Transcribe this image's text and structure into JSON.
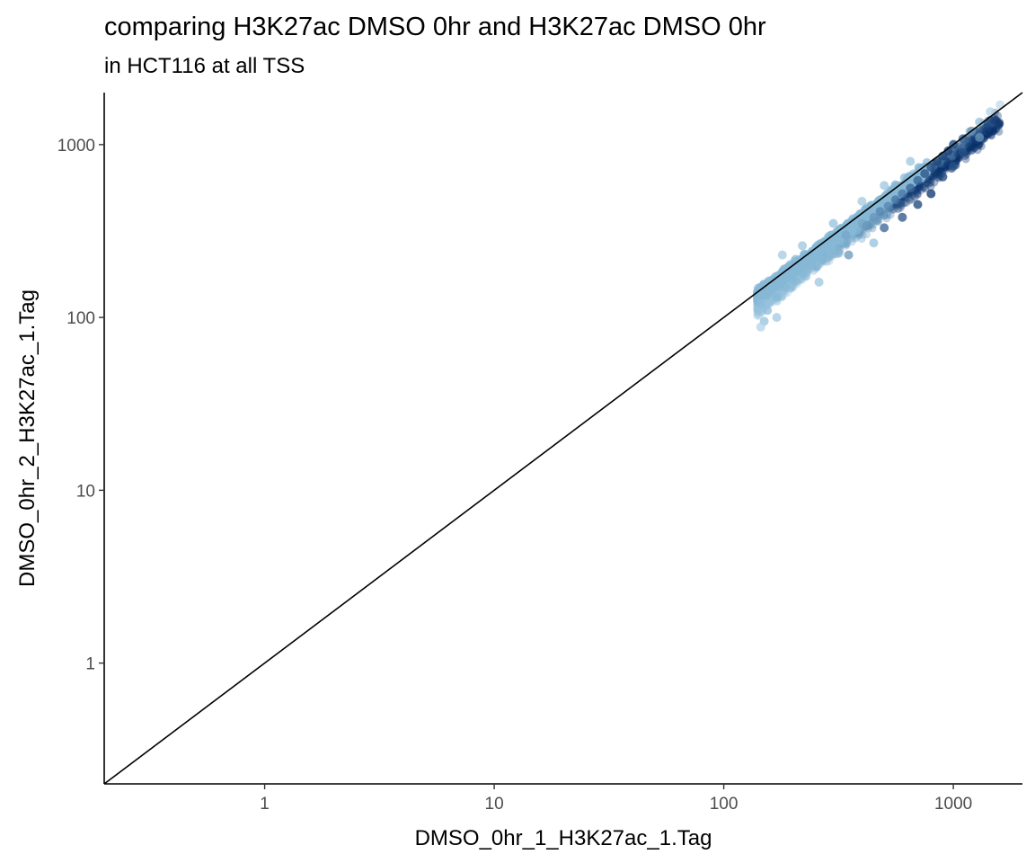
{
  "chart_data": {
    "type": "scatter",
    "title": "comparing H3K27ac DMSO 0hr and H3K27ac DMSO 0hr",
    "subtitle": "in HCT116 at all TSS",
    "xlabel": "DMSO_0hr_1_H3K27ac_1.Tag",
    "ylabel": "DMSO_0hr_2_H3K27ac_1.Tag",
    "x_scale": "log10",
    "y_scale": "log10",
    "xlim": [
      0.2,
      2000
    ],
    "ylim": [
      0.2,
      2000
    ],
    "x_ticks": [
      1,
      10,
      100,
      1000
    ],
    "x_tick_labels": [
      "1",
      "10",
      "100",
      "1000"
    ],
    "y_ticks": [
      1,
      10,
      100,
      1000
    ],
    "y_tick_labels": [
      "1",
      "10",
      "100",
      "1000"
    ],
    "grid": false,
    "reference_line": {
      "type": "identity",
      "slope": 1,
      "intercept": 0,
      "color": "#000000"
    },
    "color_scale": {
      "low": "#deebf7",
      "mid": "#86b8d6",
      "high": "#08306b"
    },
    "point_cloud": {
      "x_range": [
        140,
        1600
      ],
      "y_range": [
        85,
        1700
      ],
      "note_density": "highest density near x≈150–400, y≈120–350"
    },
    "points": [
      {
        "x": 145,
        "y": 120,
        "density": 0.55
      },
      {
        "x": 150,
        "y": 135,
        "density": 0.6
      },
      {
        "x": 155,
        "y": 110,
        "density": 0.55
      },
      {
        "x": 160,
        "y": 145,
        "density": 0.6
      },
      {
        "x": 170,
        "y": 130,
        "density": 0.6
      },
      {
        "x": 175,
        "y": 160,
        "density": 0.6
      },
      {
        "x": 185,
        "y": 150,
        "density": 0.6
      },
      {
        "x": 190,
        "y": 175,
        "density": 0.6
      },
      {
        "x": 200,
        "y": 165,
        "density": 0.6
      },
      {
        "x": 210,
        "y": 190,
        "density": 0.6
      },
      {
        "x": 220,
        "y": 180,
        "density": 0.6
      },
      {
        "x": 230,
        "y": 210,
        "density": 0.6
      },
      {
        "x": 240,
        "y": 200,
        "density": 0.6
      },
      {
        "x": 250,
        "y": 230,
        "density": 0.6
      },
      {
        "x": 265,
        "y": 220,
        "density": 0.6
      },
      {
        "x": 280,
        "y": 250,
        "density": 0.6
      },
      {
        "x": 300,
        "y": 240,
        "density": 0.6
      },
      {
        "x": 320,
        "y": 280,
        "density": 0.6
      },
      {
        "x": 340,
        "y": 300,
        "density": 0.65
      },
      {
        "x": 360,
        "y": 330,
        "density": 0.6
      },
      {
        "x": 380,
        "y": 320,
        "density": 0.6
      },
      {
        "x": 400,
        "y": 350,
        "density": 0.65
      },
      {
        "x": 420,
        "y": 340,
        "density": 0.7
      },
      {
        "x": 450,
        "y": 380,
        "density": 0.7
      },
      {
        "x": 480,
        "y": 410,
        "density": 0.75
      },
      {
        "x": 520,
        "y": 440,
        "density": 0.75
      },
      {
        "x": 560,
        "y": 480,
        "density": 0.8
      },
      {
        "x": 600,
        "y": 520,
        "density": 0.8
      },
      {
        "x": 650,
        "y": 560,
        "density": 0.85
      },
      {
        "x": 700,
        "y": 620,
        "density": 0.85
      },
      {
        "x": 750,
        "y": 680,
        "density": 0.9
      },
      {
        "x": 800,
        "y": 740,
        "density": 0.9
      },
      {
        "x": 850,
        "y": 800,
        "density": 0.95
      },
      {
        "x": 900,
        "y": 860,
        "density": 0.95
      },
      {
        "x": 950,
        "y": 920,
        "density": 0.95
      },
      {
        "x": 1000,
        "y": 1000,
        "density": 0.9
      },
      {
        "x": 1100,
        "y": 1080,
        "density": 0.85
      },
      {
        "x": 1200,
        "y": 1200,
        "density": 0.7
      },
      {
        "x": 1300,
        "y": 1350,
        "density": 0.5
      },
      {
        "x": 1450,
        "y": 1550,
        "density": 0.3
      },
      {
        "x": 1600,
        "y": 1700,
        "density": 0.2
      },
      {
        "x": 600,
        "y": 380,
        "density": 0.9
      },
      {
        "x": 700,
        "y": 450,
        "density": 0.95
      },
      {
        "x": 800,
        "y": 520,
        "density": 1.0
      },
      {
        "x": 500,
        "y": 330,
        "density": 0.85
      },
      {
        "x": 900,
        "y": 650,
        "density": 0.95
      },
      {
        "x": 350,
        "y": 230,
        "density": 0.7
      },
      {
        "x": 450,
        "y": 270,
        "density": 0.5
      },
      {
        "x": 300,
        "y": 350,
        "density": 0.5
      },
      {
        "x": 220,
        "y": 260,
        "density": 0.45
      },
      {
        "x": 180,
        "y": 230,
        "density": 0.4
      },
      {
        "x": 260,
        "y": 160,
        "density": 0.45
      },
      {
        "x": 150,
        "y": 95,
        "density": 0.5
      },
      {
        "x": 145,
        "y": 88,
        "density": 0.3
      },
      {
        "x": 170,
        "y": 100,
        "density": 0.4
      },
      {
        "x": 400,
        "y": 470,
        "density": 0.4
      },
      {
        "x": 500,
        "y": 580,
        "density": 0.45
      },
      {
        "x": 650,
        "y": 800,
        "density": 0.45
      },
      {
        "x": 1000,
        "y": 750,
        "density": 0.9
      },
      {
        "x": 1100,
        "y": 900,
        "density": 0.9
      },
      {
        "x": 1300,
        "y": 1100,
        "density": 0.7
      }
    ]
  }
}
